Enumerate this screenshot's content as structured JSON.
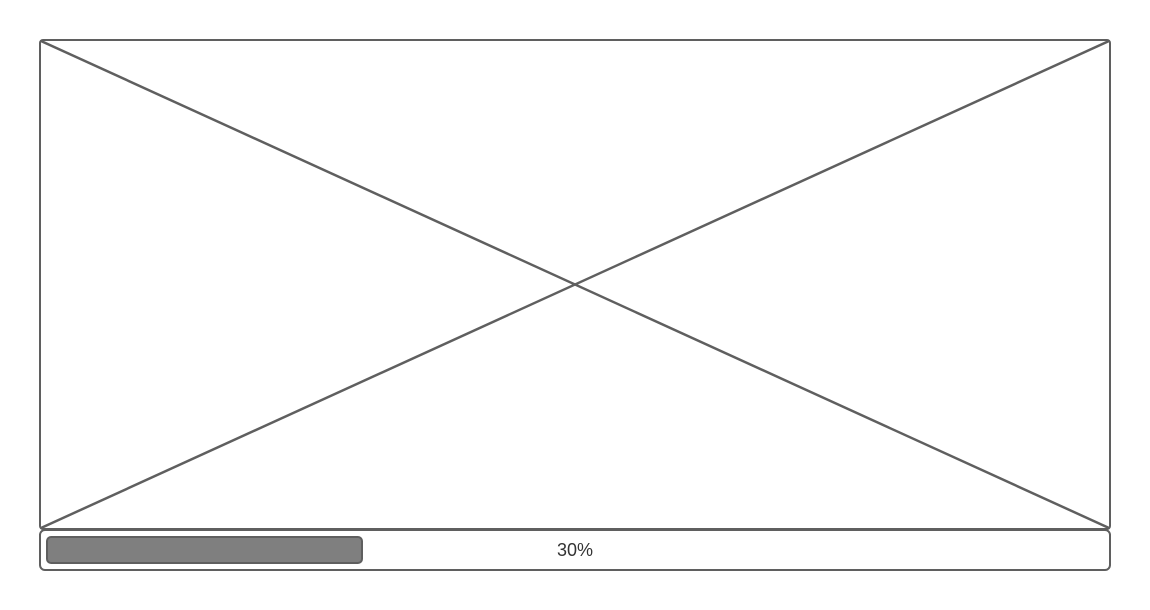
{
  "image_placeholder": {
    "icon": "image-placeholder-icon",
    "stroke_color": "#5f5f5f"
  },
  "progress": {
    "value": 0.3,
    "label": "30%",
    "fill_color": "#7f7f7f",
    "border_color": "#5f5f5f"
  }
}
